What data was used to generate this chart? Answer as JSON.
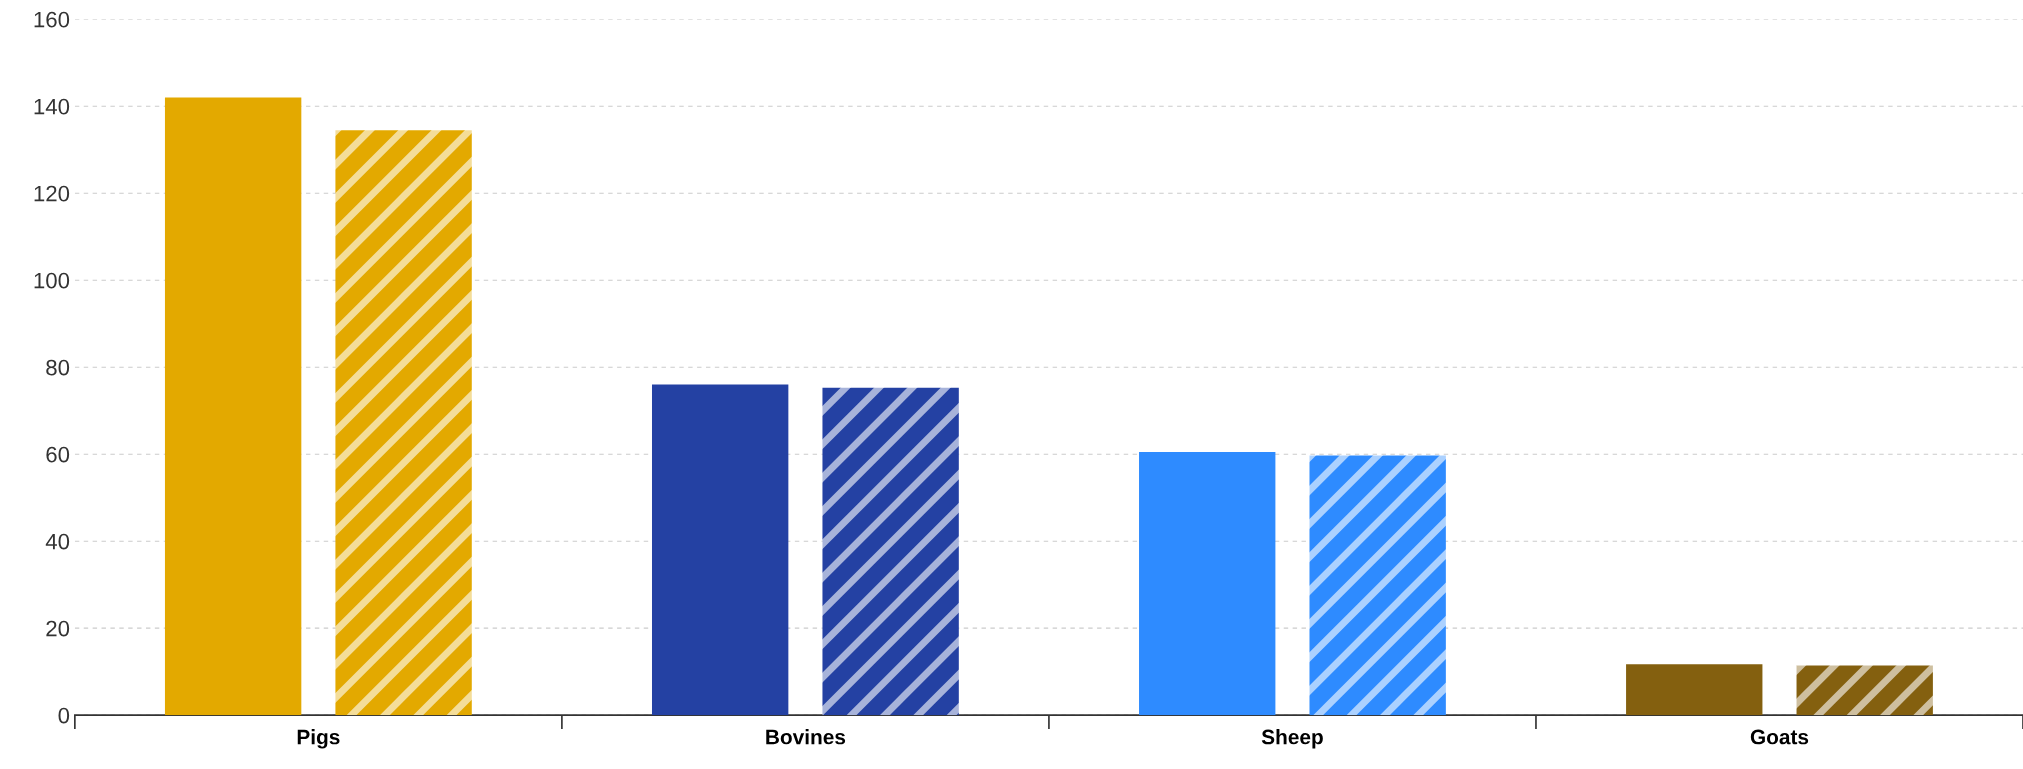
{
  "chart_data": {
    "type": "bar",
    "categories": [
      "Pigs",
      "Bovines",
      "Sheep",
      "Goats"
    ],
    "series": [
      {
        "colors": [
          "#e3a900",
          "#2441a3",
          "#2e8bff",
          "#84600f"
        ],
        "values": [
          142,
          76,
          60.5,
          11.7
        ]
      },
      {
        "colors": [
          "#e3a900",
          "#2441a3",
          "#2e8bff",
          "#84600f"
        ],
        "values": [
          134.5,
          75.3,
          59.7,
          11.4
        ]
      }
    ],
    "ylim": [
      0,
      160
    ],
    "yticks": [
      0,
      20,
      40,
      60,
      80,
      100,
      120,
      140,
      160
    ],
    "grid": "y",
    "legend": false
  }
}
